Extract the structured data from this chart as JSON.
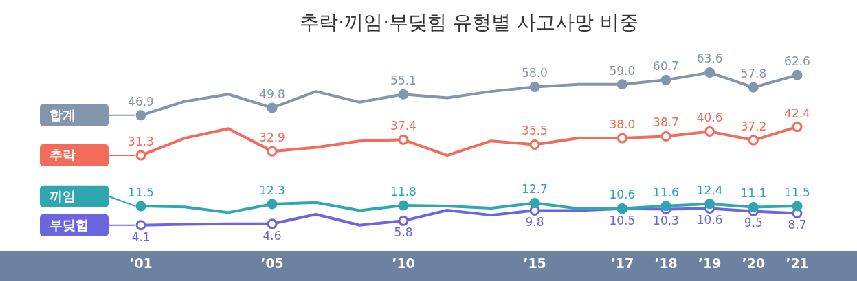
{
  "chart_data": {
    "type": "line",
    "title": "추락·끼임·부딪힘 유형별 사고사망 비중",
    "categories": [
      "’01",
      null,
      null,
      "’05",
      null,
      null,
      "’10",
      null,
      null,
      "’15",
      null,
      "’17",
      "’18",
      "’19",
      "’20",
      "’21"
    ],
    "legend": "left",
    "marker": "circle",
    "line_style": "solid",
    "grid": false,
    "tick_labels": "x",
    "series": [
      {
        "name": "합계",
        "color": "#8496ad",
        "values": [
          46.9,
          52.3,
          55.1,
          49.8,
          56.2,
          52.0,
          55.1,
          53.7,
          56.2,
          58.0,
          59.0,
          59.0,
          60.7,
          63.6,
          57.8,
          62.6
        ],
        "value_labels": [
          "46.9",
          null,
          null,
          "49.8",
          null,
          null,
          "55.1",
          null,
          null,
          "58.0",
          null,
          "59.0",
          "60.7",
          "63.6",
          "57.8",
          "62.6"
        ]
      },
      {
        "name": "추락",
        "color": "#f26b5b",
        "values": [
          31.3,
          38.0,
          41.7,
          32.9,
          34.4,
          36.9,
          37.4,
          31.3,
          36.9,
          35.5,
          38.0,
          38.0,
          38.7,
          40.6,
          37.2,
          42.4
        ],
        "value_labels": [
          "31.3",
          null,
          null,
          "32.9",
          null,
          null,
          "37.4",
          null,
          null,
          "35.5",
          null,
          "38.0",
          "38.7",
          "40.6",
          "37.2",
          "42.4"
        ]
      },
      {
        "name": "끼임",
        "color": "#2fa6b0",
        "values": [
          11.5,
          11.2,
          9.0,
          12.3,
          12.9,
          9.8,
          11.8,
          11.5,
          10.7,
          12.7,
          10.5,
          10.6,
          11.6,
          12.4,
          11.1,
          11.5
        ],
        "value_labels": [
          "11.5",
          null,
          null,
          "12.3",
          null,
          null,
          "11.8",
          null,
          null,
          "12.7",
          null,
          "10.6",
          "11.6",
          "12.4",
          "11.1",
          "11.5"
        ]
      },
      {
        "name": "부딪힘",
        "color": "#6b66e0",
        "values": [
          4.1,
          4.4,
          4.6,
          4.6,
          8.3,
          4.1,
          5.8,
          9.9,
          8.0,
          9.8,
          9.8,
          10.5,
          10.3,
          10.6,
          9.5,
          8.7
        ],
        "value_labels": [
          "4.1",
          null,
          null,
          "4.6",
          null,
          null,
          "5.8",
          null,
          null,
          "9.8",
          null,
          "10.5",
          "10.3",
          "10.6",
          "9.5",
          "8.7"
        ]
      }
    ]
  }
}
